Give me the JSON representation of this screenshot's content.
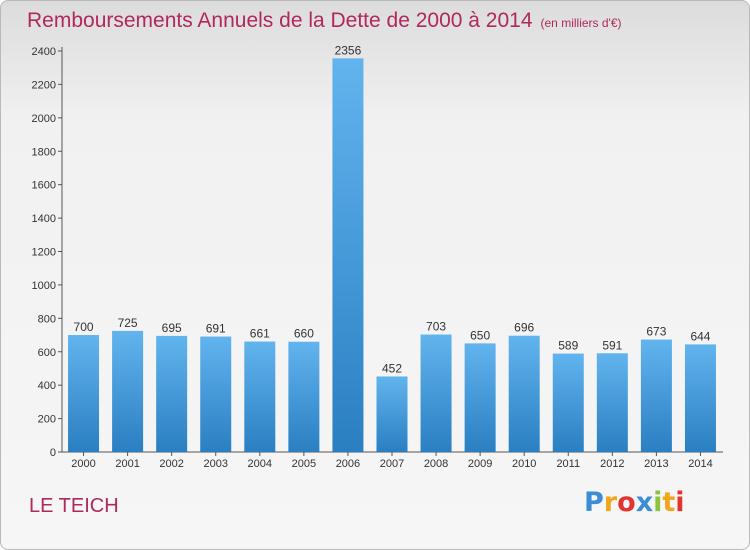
{
  "header": {
    "title": "Remboursements Annuels de la Dette de 2000 à 2014",
    "unit": "(en milliers d'€)"
  },
  "footer": {
    "town": "LE TEICH"
  },
  "logo": {
    "letters": [
      "P",
      "r",
      "o",
      "x",
      "i",
      "t",
      "i"
    ],
    "colors": [
      "#3a8dd6",
      "#f2a619",
      "#e2352f",
      "#3a8dd6",
      "#8bc540",
      "#f2a619",
      "#e2352f"
    ]
  },
  "colors": {
    "bar_top": "#62b4ee",
    "bar_bottom": "#2a7fc2",
    "accent": "#b0285e"
  },
  "chart_data": {
    "type": "bar",
    "title": "Remboursements Annuels de la Dette de 2000 à 2014",
    "ylabel": "",
    "xlabel": "",
    "categories": [
      "2000",
      "2001",
      "2002",
      "2003",
      "2004",
      "2005",
      "2006",
      "2007",
      "2008",
      "2009",
      "2010",
      "2011",
      "2012",
      "2013",
      "2014"
    ],
    "values": [
      700,
      725,
      695,
      691,
      661,
      660,
      2356,
      452,
      703,
      650,
      696,
      589,
      591,
      673,
      644
    ],
    "ylim": [
      0,
      2400
    ],
    "yticks": [
      0,
      200,
      400,
      600,
      800,
      1000,
      1200,
      1400,
      1600,
      1800,
      2000,
      2200,
      2400
    ],
    "grid": false,
    "legend": "none"
  }
}
